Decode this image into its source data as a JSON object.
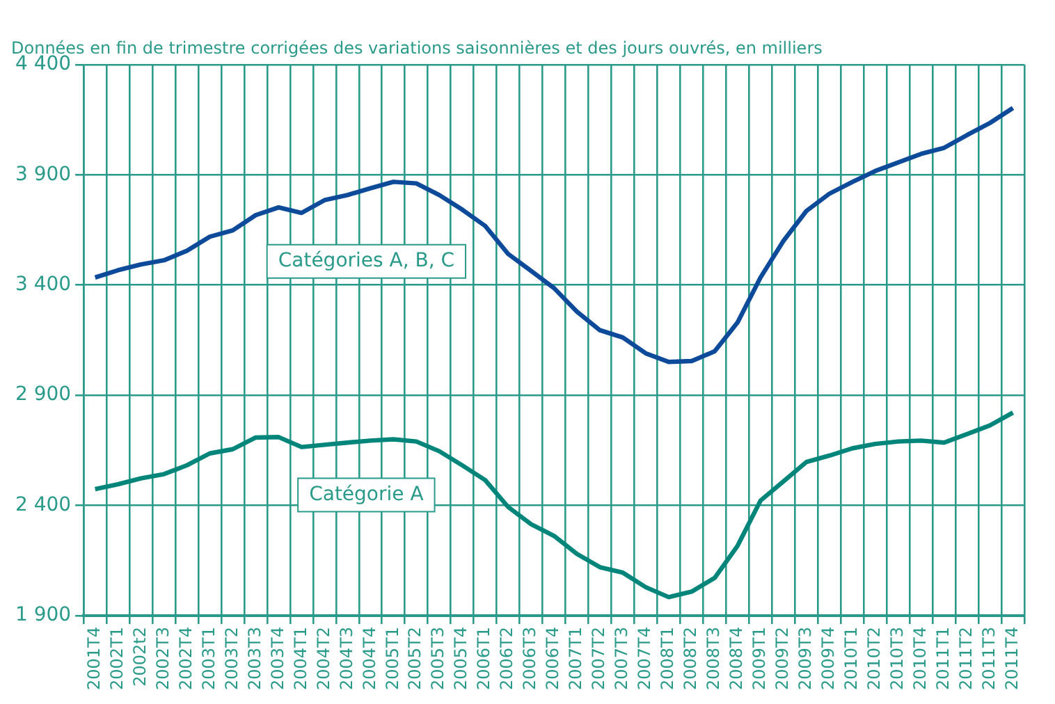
{
  "chart_data": {
    "type": "line",
    "title": "Données en fin de trimestre corrigées des variations saisonnières et des jours ouvrés, en milliers",
    "categories": [
      "2001T4",
      "2002T1",
      "2002t2",
      "2002T3",
      "2002T4",
      "2003T1",
      "2003T2",
      "2003T3",
      "2003T4",
      "2004T1",
      "2004T2",
      "2004T3",
      "2004T4",
      "2005T1",
      "2005T2",
      "2005T3",
      "2005T4",
      "2006T1",
      "2006T2",
      "2006T3",
      "2006T4",
      "2007T1",
      "2007T2",
      "2007T3",
      "2007T4",
      "2008T1",
      "2008T2",
      "2008T3",
      "2008T4",
      "2009T1",
      "2009T2",
      "2009T3",
      "2009T4",
      "2010T1",
      "2010T2",
      "2010T3",
      "2010T4",
      "2011T1",
      "2011T2",
      "2011T3",
      "2011T4"
    ],
    "series": [
      {
        "name": "Catégories A, B, C",
        "color": "#0d4a9a",
        "values": [
          3434,
          3467,
          3493,
          3512,
          3555,
          3619,
          3648,
          3717,
          3752,
          3727,
          3785,
          3808,
          3839,
          3868,
          3861,
          3808,
          3742,
          3668,
          3541,
          3464,
          3386,
          3279,
          3195,
          3162,
          3090,
          3051,
          3055,
          3099,
          3230,
          3434,
          3600,
          3736,
          3814,
          3867,
          3917,
          3956,
          3995,
          4022,
          4080,
          4135,
          4203
        ]
      },
      {
        "name": "Catégorie A",
        "color": "#00857a",
        "values": [
          2474,
          2496,
          2523,
          2542,
          2582,
          2636,
          2655,
          2708,
          2710,
          2665,
          2675,
          2685,
          2694,
          2700,
          2690,
          2646,
          2582,
          2515,
          2393,
          2315,
          2262,
          2180,
          2120,
          2095,
          2029,
          1984,
          2009,
          2071,
          2217,
          2422,
          2509,
          2597,
          2626,
          2659,
          2679,
          2690,
          2694,
          2685,
          2724,
          2763,
          2821
        ]
      }
    ],
    "ylim": [
      1900,
      4400
    ],
    "yticks": [
      {
        "value": 1900,
        "label": "1 900"
      },
      {
        "value": 2400,
        "label": "2 400"
      },
      {
        "value": 2900,
        "label": "2 900"
      },
      {
        "value": 3400,
        "label": "3 400"
      },
      {
        "value": 3900,
        "label": "3 900"
      },
      {
        "value": 4400,
        "label": "4 400"
      }
    ],
    "grid": true,
    "legend": false,
    "marker": "none",
    "line_style": "solid"
  }
}
